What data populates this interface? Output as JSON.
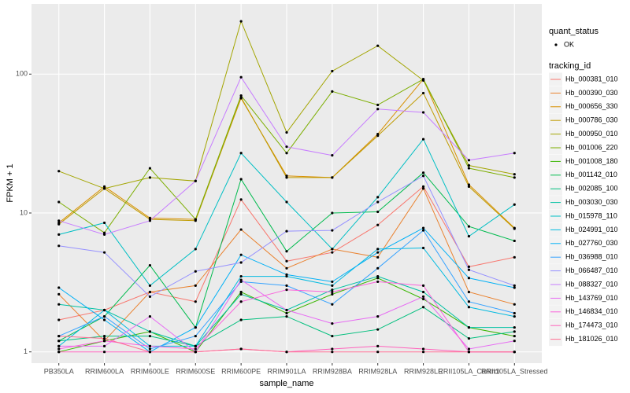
{
  "chart_data": {
    "type": "line",
    "x_label": "sample_name",
    "y_label": "FPKM + 1",
    "log_y": true,
    "grid": true,
    "point_color": "#000000",
    "categories": [
      "PB350LA",
      "RRIM600LA",
      "RRIM600LE",
      "RRIM600SE",
      "RRIM600PE",
      "RRIM901LA",
      "RRIM928BA",
      "RRIM928LA",
      "RRIM928LE",
      "RRII105LA_Control",
      "RRII105LA_Stressed"
    ],
    "ylim": [
      0.83,
      320
    ],
    "yticks": [
      1,
      10,
      100
    ],
    "shape_legend": {
      "title": "quant_status",
      "labels": [
        "OK"
      ]
    },
    "legend_title": "tracking_id",
    "series": [
      {
        "name": "Hb_000381_010",
        "color": "#F8766D",
        "values": [
          1.7,
          2,
          2.7,
          2.3,
          12.5,
          4.5,
          5.2,
          8.2,
          15.5,
          4.1,
          4.8
        ]
      },
      {
        "name": "Hb_000390_030",
        "color": "#EA8331",
        "values": [
          2.6,
          1.2,
          2.7,
          3,
          7.6,
          4,
          5.5,
          4.8,
          15,
          2.7,
          2.2
        ]
      },
      {
        "name": "Hb_000656_330",
        "color": "#D89000",
        "values": [
          8.5,
          15.5,
          9.2,
          9,
          67,
          18.5,
          18,
          37,
          92,
          16,
          7.8
        ]
      },
      {
        "name": "Hb_000786_030",
        "color": "#C09B00",
        "values": [
          8.3,
          15,
          9,
          8.8,
          68,
          18,
          18,
          36,
          73,
          15.5,
          7.7
        ]
      },
      {
        "name": "Hb_000950_010",
        "color": "#A3A500",
        "values": [
          20,
          15,
          18,
          17,
          240,
          38,
          105,
          160,
          90,
          22,
          19
        ]
      },
      {
        "name": "Hb_001006_220",
        "color": "#7CAE00",
        "values": [
          12,
          7.2,
          21,
          9,
          70,
          27,
          75,
          60,
          92,
          21,
          18
        ]
      },
      {
        "name": "Hb_001008_180",
        "color": "#39B600",
        "values": [
          1,
          1.2,
          1.4,
          1,
          2.7,
          1.9,
          2.6,
          3.4,
          2.4,
          1.5,
          1.3
        ]
      },
      {
        "name": "Hb_001142_010",
        "color": "#00BB4E",
        "values": [
          1.2,
          1.8,
          4.2,
          1.5,
          17.5,
          5.3,
          10,
          10.2,
          19.5,
          8,
          6.3
        ]
      },
      {
        "name": "Hb_002085_100",
        "color": "#00BF7D",
        "values": [
          1.2,
          1.3,
          1.3,
          1.1,
          1.7,
          1.8,
          1.3,
          1.45,
          2.1,
          1.25,
          1.4
        ]
      },
      {
        "name": "Hb_003030_030",
        "color": "#00C1A3",
        "values": [
          2.2,
          2,
          1.4,
          1.1,
          2.6,
          2,
          2.8,
          3.5,
          2.7,
          1.5,
          1.5
        ]
      },
      {
        "name": "Hb_015978_110",
        "color": "#00BFC4",
        "values": [
          7,
          8.5,
          3,
          5.5,
          27,
          12,
          5.5,
          13,
          34,
          6.8,
          11.5
        ]
      },
      {
        "name": "Hb_024991_010",
        "color": "#00BAE0",
        "values": [
          1.1,
          2,
          1.1,
          1.1,
          3.5,
          3.5,
          3,
          5.5,
          5.6,
          2.1,
          1.8
        ]
      },
      {
        "name": "Hb_027760_030",
        "color": "#00B0F6",
        "values": [
          2.9,
          1.7,
          1,
          1.5,
          5,
          3.6,
          3.2,
          5.2,
          7.8,
          3.4,
          2.9
        ]
      },
      {
        "name": "Hb_036988_010",
        "color": "#35A2FF",
        "values": [
          1.3,
          1.8,
          1.05,
          1.3,
          3.2,
          3,
          2.2,
          4,
          7.5,
          2.3,
          1.9
        ]
      },
      {
        "name": "Hb_066487_010",
        "color": "#9590FF",
        "values": [
          5.8,
          5.2,
          2.5,
          3.8,
          4.4,
          7.4,
          7.5,
          12,
          18.5,
          3.9,
          3
        ]
      },
      {
        "name": "Hb_088327_010",
        "color": "#C77CFF",
        "values": [
          8.8,
          7,
          8.8,
          17,
          95,
          30,
          26,
          56,
          53,
          24,
          27
        ]
      },
      {
        "name": "Hb_143769_010",
        "color": "#E76BF3",
        "values": [
          1.1,
          1.1,
          1.8,
          1,
          3.3,
          2,
          1.6,
          1.8,
          2.5,
          1.05,
          1.2
        ]
      },
      {
        "name": "Hb_146834_010",
        "color": "#FA62DB",
        "values": [
          1.05,
          1.2,
          1.1,
          1.05,
          2.3,
          2.8,
          2.7,
          3.2,
          3,
          1,
          1
        ]
      },
      {
        "name": "Hb_174473_010",
        "color": "#FF62BC",
        "values": [
          1,
          1,
          1,
          1,
          1.05,
          1,
          1.05,
          1.1,
          1.05,
          1,
          1
        ]
      },
      {
        "name": "Hb_181026_010",
        "color": "#FF6C91",
        "values": [
          1.3,
          1.25,
          1,
          1,
          1.05,
          1,
          1,
          1,
          1,
          1,
          1
        ]
      }
    ]
  }
}
